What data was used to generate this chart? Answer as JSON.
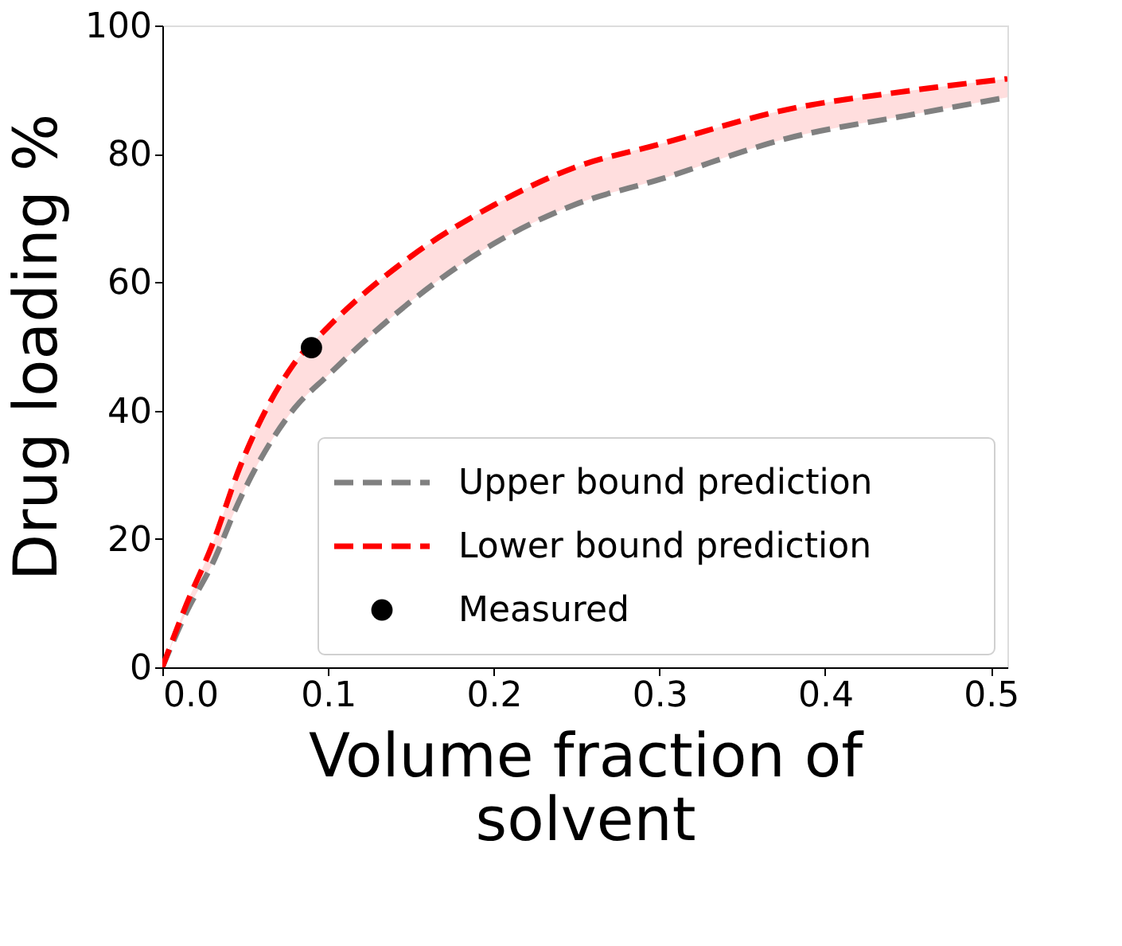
{
  "chart_data": {
    "type": "line",
    "xlabel": "Volume fraction of\nsolvent",
    "ylabel": "Drug loading %",
    "x": [
      0,
      0.0144,
      0.03,
      0.0465,
      0.0786,
      0.1,
      0.15,
      0.2,
      0.248,
      0.3,
      0.377,
      0.45,
      0.51
    ],
    "series": [
      {
        "name": "Upper bound prediction",
        "color": "#808080",
        "line_style": "dashed",
        "values": [
          0,
          8.5,
          16,
          26,
          40,
          45.5,
          57,
          66,
          72,
          76,
          82.4,
          86,
          88.8
        ]
      },
      {
        "name": "Lower bound prediction",
        "color": "#ff0000",
        "line_style": "dashed",
        "values": [
          0,
          9.7,
          19,
          31,
          47,
          53,
          64,
          72,
          77.8,
          81.5,
          86.9,
          89.8,
          91.7
        ],
        "lower": [
          0,
          8.5,
          16,
          26,
          40,
          45.5,
          57,
          66,
          72,
          76,
          82.4,
          86,
          88.8
        ],
        "upper": [
          0,
          9.7,
          19,
          31,
          47,
          53,
          64,
          72,
          77.8,
          81.5,
          86.9,
          89.8,
          91.7
        ]
      },
      {
        "name": "Measured",
        "type": "scatter",
        "color": "#000000",
        "marker": "circle",
        "x": [
          0.09
        ],
        "values": [
          49.8
        ]
      }
    ],
    "xlim": [
      0,
      0.51
    ],
    "ylim": [
      0,
      100
    ],
    "xticks": [
      {
        "value": 0,
        "label": "0.0"
      },
      {
        "value": 0.1,
        "label": "0.1"
      },
      {
        "value": 0.2,
        "label": "0.2"
      },
      {
        "value": 0.3,
        "label": "0.3"
      },
      {
        "value": 0.4,
        "label": "0.4"
      },
      {
        "value": 0.5,
        "label": "0.5"
      }
    ],
    "yticks": [
      0,
      20,
      40,
      60,
      80,
      100
    ],
    "legend": "bottom right",
    "grid": false
  }
}
